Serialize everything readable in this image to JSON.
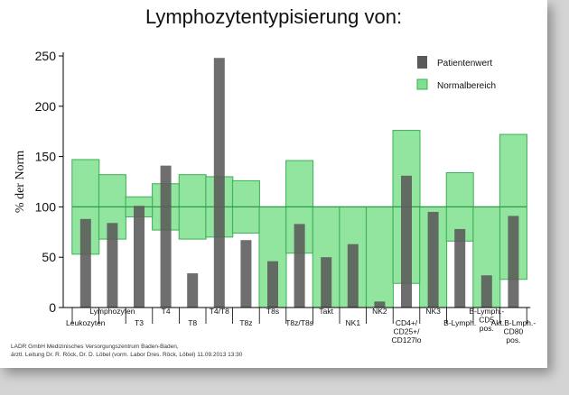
{
  "chart_data": {
    "type": "bar",
    "title": "Lymphozytentypisierung von:",
    "ylabel": "% der Norm",
    "ylim": [
      0,
      250
    ],
    "yticks": [
      0,
      50,
      100,
      150,
      200,
      250
    ],
    "reference_line": 100,
    "categories": [
      {
        "label": "Leukozyten",
        "patient": 88,
        "norm_low": 53,
        "norm_high": 147
      },
      {
        "label": "Lymphozyten",
        "patient": 84,
        "norm_low": 68,
        "norm_high": 132
      },
      {
        "label": "T3",
        "patient": 101,
        "norm_low": 90,
        "norm_high": 110
      },
      {
        "label": "T4",
        "patient": 141,
        "norm_low": 77,
        "norm_high": 123
      },
      {
        "label": "T8",
        "patient": 34,
        "norm_low": 68,
        "norm_high": 132
      },
      {
        "label": "T4/T8",
        "patient": 248,
        "norm_low": 70,
        "norm_high": 130
      },
      {
        "label": "T8z",
        "patient": 67,
        "norm_low": 74,
        "norm_high": 126
      },
      {
        "label": "T8s",
        "patient": 46,
        "norm_low": 0,
        "norm_high": 100
      },
      {
        "label": "T8z/T8s",
        "patient": 83,
        "norm_low": 54,
        "norm_high": 146
      },
      {
        "label": "Takt",
        "patient": 50,
        "norm_low": 0,
        "norm_high": 100
      },
      {
        "label": "NK1",
        "patient": 63,
        "norm_low": 0,
        "norm_high": 100
      },
      {
        "label": "NK2",
        "patient": 6,
        "norm_low": 0,
        "norm_high": 100
      },
      {
        "label": "CD4+/ CD25+/ CD127lo",
        "patient": 131,
        "norm_low": 24,
        "norm_high": 176
      },
      {
        "label": "NK3",
        "patient": 95,
        "norm_low": 0,
        "norm_high": 100
      },
      {
        "label": "B-Lymph.",
        "patient": 78,
        "norm_low": 66,
        "norm_high": 134
      },
      {
        "label": "B-Lymph.- CD5 pos.",
        "patient": 32,
        "norm_low": 0,
        "norm_high": 100
      },
      {
        "label": "Akt.B-Lmph.- CD80 pos.",
        "patient": 91,
        "norm_low": 28,
        "norm_high": 172
      }
    ],
    "series": [
      {
        "name": "Patientenwert",
        "color": "#5a5a5a"
      },
      {
        "name": "Normalbereich",
        "color": "#7ee08e"
      }
    ],
    "legend_position": "top-right",
    "grid": false
  },
  "footer": {
    "line1": "LADR GmbH Medizinisches Versorgungszentrum Baden-Baden,",
    "line2": "ärztl. Leitung Dr. R. Röck, Dr. D. Löbel (vorm. Labor Dres. Röck, Löbel) 11.09.2013 13:30"
  }
}
